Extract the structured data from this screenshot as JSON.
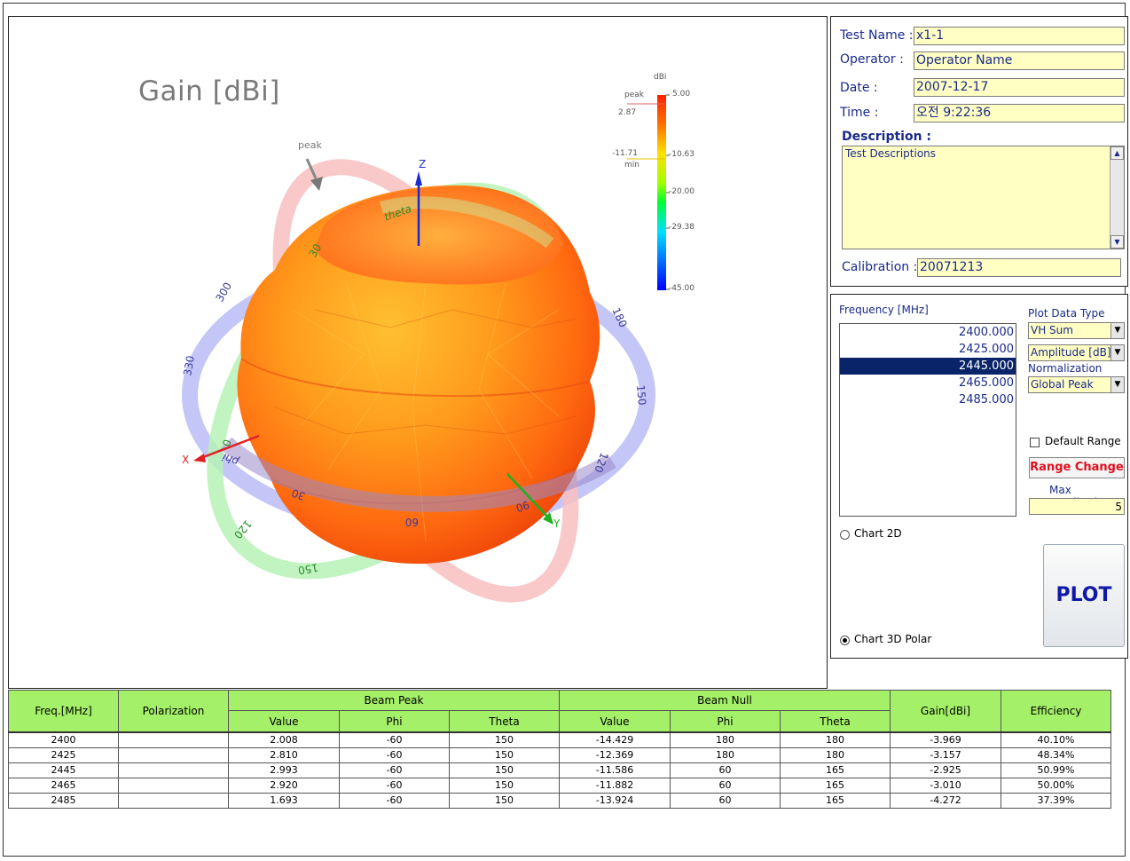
{
  "plot": {
    "title": "Gain [dBi]",
    "peak_marker": "peak",
    "axes": {
      "x": "X",
      "y": "Y",
      "z": "Z"
    },
    "ring_labels": {
      "phi": "phi",
      "theta": "theta",
      "blue": [
        "300",
        "330",
        "180",
        "150",
        "120",
        "90",
        "60",
        "30"
      ],
      "green": [
        "0",
        "30",
        "60",
        "90",
        "120",
        "150"
      ],
      "red": [
        "30",
        "60",
        "90"
      ]
    },
    "colorbar": {
      "unit": "dBi",
      "peak_label": "peak",
      "peak_value": "2.87",
      "min_value": "-11.71",
      "min_label": "min",
      "ticks": [
        "5.00",
        "-10.63",
        "-20.00",
        "-29.38",
        "-45.00"
      ]
    }
  },
  "info": {
    "test_name_label": "Test Name :",
    "test_name": "x1-1",
    "operator_label": "Operator :",
    "operator": "Operator Name",
    "date_label": "Date :",
    "date": "2007-12-17",
    "time_label": "Time :",
    "time": "오전 9:22:36",
    "description_label": "Description :",
    "description": "Test Descriptions",
    "calibration_label": "Calibration :",
    "calibration": "20071213"
  },
  "controls": {
    "frequency_label": "Frequency [MHz]",
    "frequencies": [
      "2400.000",
      "2425.000",
      "2445.000",
      "2465.000",
      "2485.000"
    ],
    "selected_frequency": "2445.000",
    "plot_data_type_label": "Plot Data Type",
    "plot_data_type": "VH Sum",
    "amplitude_type": "Amplitude [dB]",
    "normalization_label": "Normalization",
    "normalization": "Global Peak",
    "default_range_label": "Default Range",
    "default_range_checked": false,
    "range_change_label": "Range Change",
    "max_amplitude_label": "Max Amplitude",
    "max_amplitude": "5",
    "chart_2d_label": "Chart 2D",
    "chart_3d_label": "Chart 3D Polar",
    "chart_mode": "3D Polar",
    "plot_button": "PLOT"
  },
  "results": {
    "headers": {
      "freq": "Freq.[MHz]",
      "polarization": "Polarization",
      "beam_peak": "Beam Peak",
      "beam_null": "Beam Null",
      "gain": "Gain[dBi]",
      "efficiency": "Efficiency",
      "value": "Value",
      "phi": "Phi",
      "theta": "Theta"
    },
    "rows": [
      [
        "2400",
        "",
        "2.008",
        "-60",
        "150",
        "-14.429",
        "180",
        "180",
        "-3.969",
        "40.10%"
      ],
      [
        "2425",
        "",
        "2.810",
        "-60",
        "150",
        "-12.369",
        "180",
        "180",
        "-3.157",
        "48.34%"
      ],
      [
        "2445",
        "",
        "2.993",
        "-60",
        "150",
        "-11.586",
        "60",
        "165",
        "-2.925",
        "50.99%"
      ],
      [
        "2465",
        "",
        "2.920",
        "-60",
        "150",
        "-11.882",
        "60",
        "165",
        "-3.010",
        "50.00%"
      ],
      [
        "2485",
        "",
        "1.693",
        "-60",
        "150",
        "-13.924",
        "60",
        "165",
        "-4.272",
        "37.39%"
      ]
    ]
  },
  "colors": {
    "field_bg": "#ffffc4",
    "header_green": "#a4f068",
    "selection": "#0a246a",
    "label_blue": "#1a2a8a",
    "range_change_red": "#e01020"
  }
}
